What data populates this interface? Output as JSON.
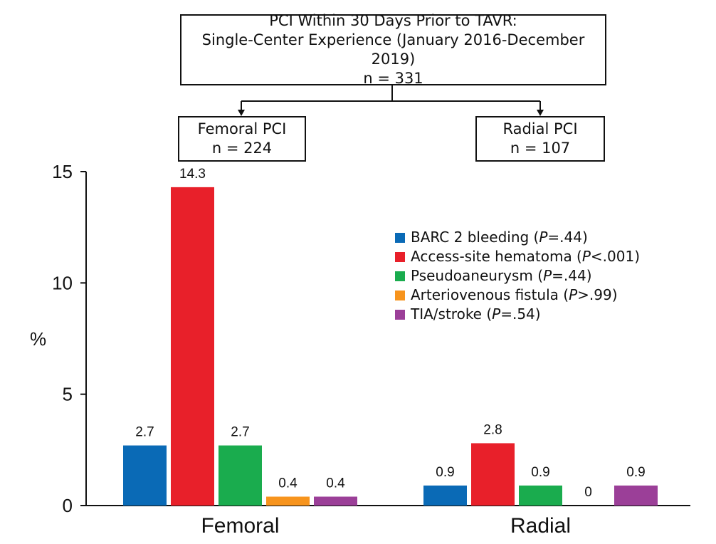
{
  "flowchart": {
    "top": {
      "line1": "PCI Within 30 Days Prior to TAVR:",
      "line2": "Single-Center Experience (January 2016-December 2019)",
      "line3": "n = 331"
    },
    "femoral": {
      "line1": "Femoral PCI",
      "line2": "n = 224"
    },
    "radial": {
      "line1": "Radial PCI",
      "line2": "n = 107"
    }
  },
  "legend": [
    {
      "pre": "BARC 2 bleeding (",
      "p": "P",
      "post": "=.44)"
    },
    {
      "pre": "Access-site hematoma (",
      "p": "P",
      "post": "<.001)"
    },
    {
      "pre": "Pseudoaneurysm (",
      "p": "P",
      "post": "=.44)"
    },
    {
      "pre": "Arteriovenous fistula (",
      "p": "P",
      "post": ">.99)"
    },
    {
      "pre": "TIA/stroke (",
      "p": "P",
      "post": "=.54)"
    }
  ],
  "colors": [
    "#0a6ab6",
    "#e8202a",
    "#1aac4e",
    "#f7941d",
    "#9b3f98"
  ],
  "chart_data": {
    "type": "bar",
    "categories": [
      "Femoral",
      "Radial"
    ],
    "ylabel": "%",
    "ylim": [
      0,
      15
    ],
    "yticks": [
      0,
      5,
      10,
      15
    ],
    "grid": false,
    "legend_position": "right",
    "series": [
      {
        "name": "BARC 2 bleeding (P=.44)",
        "values": [
          2.7,
          0.9
        ],
        "labels": [
          "2.7",
          "0.9"
        ]
      },
      {
        "name": "Access-site hematoma (P<.001)",
        "values": [
          14.3,
          2.8
        ],
        "labels": [
          "14.3",
          "2.8"
        ]
      },
      {
        "name": "Pseudoaneurysm (P=.44)",
        "values": [
          2.7,
          0.9
        ],
        "labels": [
          "2.7",
          "0.9"
        ]
      },
      {
        "name": "Arteriovenous fistula (P>.99)",
        "values": [
          0.4,
          0
        ],
        "labels": [
          "0.4",
          "0"
        ]
      },
      {
        "name": "TIA/stroke (P=.54)",
        "values": [
          0.4,
          0.9
        ],
        "labels": [
          "0.4",
          "0.9"
        ]
      }
    ]
  }
}
